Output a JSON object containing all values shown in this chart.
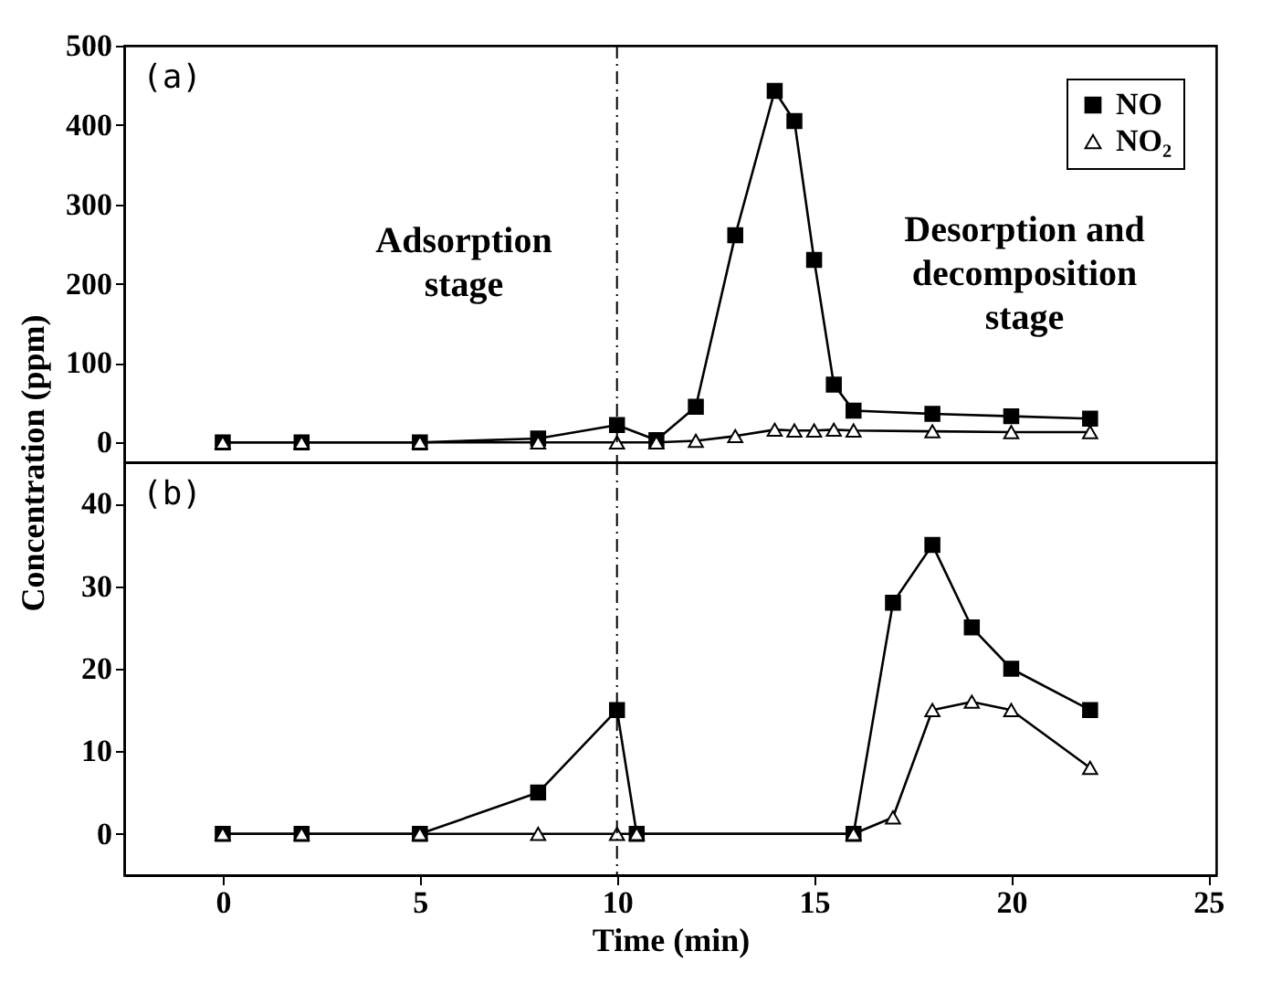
{
  "chart_data": [
    {
      "type": "line",
      "annotations": [
        "(a)",
        "Adsorption\nstage",
        "Desorption and\ndecomposition\nstage"
      ],
      "ylabel": "Concentration (ppm)",
      "x": [
        0,
        2,
        5,
        8,
        10,
        11,
        12,
        13,
        14,
        14.5,
        15,
        15.5,
        16,
        18,
        20,
        22
      ],
      "series": [
        {
          "name": "NO",
          "color": "#000000",
          "marker": "square",
          "values": [
            0,
            0,
            0,
            5,
            22,
            3,
            45,
            261,
            443,
            405,
            230,
            73,
            40,
            36,
            33,
            30
          ]
        },
        {
          "name": "NO₂",
          "color": "#000000",
          "marker": "triangle",
          "values": [
            0,
            0,
            0,
            0,
            0,
            0,
            2,
            8,
            16,
            15,
            15,
            16,
            15,
            14,
            13,
            13
          ]
        }
      ],
      "xlim": [
        -2.5,
        25.2
      ],
      "ylim": [
        -25,
        500
      ],
      "yticks": [
        0,
        100,
        200,
        300,
        400,
        500
      ],
      "tick_labels": "y",
      "legend": "top right",
      "ref_lines": [
        {
          "axis": "x",
          "value": 10,
          "line_style": "dashed"
        }
      ]
    },
    {
      "type": "line",
      "annotations": [
        "(b)"
      ],
      "xlabel": "Time (min)",
      "x": [
        0,
        2,
        5,
        8,
        10,
        10.5,
        16,
        17,
        18,
        19,
        20,
        22
      ],
      "series": [
        {
          "color": "#000000",
          "marker": "square",
          "values": [
            0,
            0,
            0,
            5,
            15,
            0,
            0,
            28,
            35,
            25,
            20,
            15
          ]
        },
        {
          "color": "#000000",
          "marker": "triangle",
          "values": [
            0,
            0,
            0,
            0,
            0,
            0,
            0,
            2,
            15,
            16,
            15,
            8
          ]
        }
      ],
      "xlim": [
        -2.5,
        25.2
      ],
      "xticks": [
        0,
        5,
        10,
        15,
        20,
        25
      ],
      "ylim": [
        -5,
        45
      ],
      "yticks": [
        0,
        10,
        20,
        30,
        40
      ],
      "ref_lines": [
        {
          "axis": "x",
          "value": 10,
          "line_style": "dashed"
        }
      ]
    }
  ]
}
